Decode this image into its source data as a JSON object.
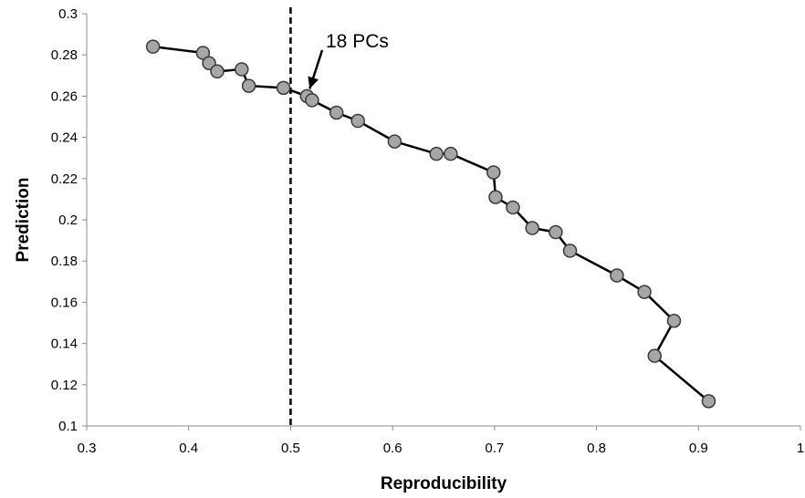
{
  "chart_data": {
    "type": "line",
    "title": "",
    "xlabel": "Reproducibility",
    "ylabel": "Prediction",
    "xlim": [
      0.3,
      1
    ],
    "ylim": [
      0.1,
      0.3
    ],
    "xticks": [
      "0.3",
      "0.4",
      "0.5",
      "0.6",
      "0.7",
      "0.8",
      "0.9",
      "1"
    ],
    "yticks": [
      "0.1",
      "0.12",
      "0.14",
      "0.16",
      "0.18",
      "0.2",
      "0.22",
      "0.24",
      "0.26",
      "0.28",
      "0.3"
    ],
    "grid": false,
    "legend": "none",
    "series": [
      {
        "marker": "circle",
        "marker_color": "#a6a6a6",
        "line_color": "#000000",
        "x": [
          0.365,
          0.414,
          0.42,
          0.428,
          0.452,
          0.459,
          0.493,
          0.516,
          0.521,
          0.545,
          0.566,
          0.602,
          0.643,
          0.657,
          0.699,
          0.701,
          0.718,
          0.737,
          0.76,
          0.774,
          0.82,
          0.847,
          0.876,
          0.857,
          0.91
        ],
        "y": [
          0.284,
          0.281,
          0.276,
          0.272,
          0.273,
          0.265,
          0.264,
          0.26,
          0.258,
          0.252,
          0.248,
          0.238,
          0.232,
          0.232,
          0.223,
          0.211,
          0.206,
          0.196,
          0.194,
          0.185,
          0.173,
          0.165,
          0.151,
          0.134,
          0.112
        ]
      }
    ],
    "reference_line": {
      "x": 0.5,
      "style": "dashed",
      "color": "#000000"
    },
    "annotation": {
      "text": "18  PCs",
      "arrow_to": [
        0.516,
        0.26
      ]
    }
  }
}
